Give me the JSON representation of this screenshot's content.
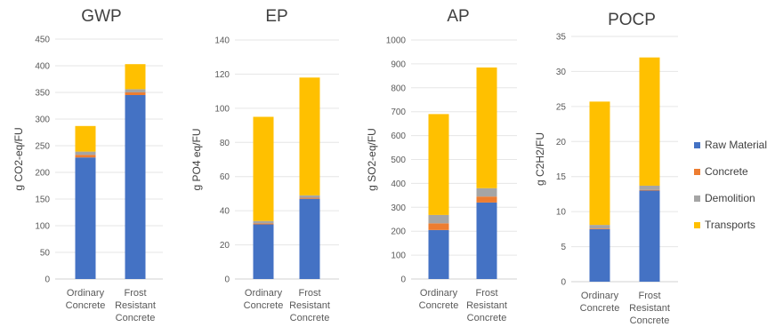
{
  "chart_data": [
    {
      "type": "bar",
      "stacked": true,
      "title": "GWP",
      "ylabel": "g CO2-eq/FU",
      "ylim": [
        0,
        450
      ],
      "yticks": [
        0,
        50,
        100,
        150,
        200,
        250,
        300,
        350,
        400,
        450
      ],
      "categories": [
        [
          "Ordinary",
          "Concrete"
        ],
        [
          "Frost",
          "Resistant",
          "Concrete"
        ]
      ],
      "series": [
        {
          "name": "Raw Material",
          "values": [
            228,
            345
          ]
        },
        {
          "name": "Concrete",
          "values": [
            5,
            5
          ]
        },
        {
          "name": "Demolition",
          "values": [
            6,
            6
          ]
        },
        {
          "name": "Transports",
          "values": [
            48,
            47
          ]
        }
      ],
      "grid": true
    },
    {
      "type": "bar",
      "stacked": true,
      "title": "EP",
      "ylabel": "g PO4 eq/FU",
      "ylim": [
        0,
        140
      ],
      "yticks": [
        0,
        20,
        40,
        60,
        80,
        100,
        120,
        140
      ],
      "categories": [
        [
          "Ordinary",
          "Concrete"
        ],
        [
          "Frost",
          "Resistant",
          "Concrete"
        ]
      ],
      "series": [
        {
          "name": "Raw Material",
          "values": [
            32,
            47
          ]
        },
        {
          "name": "Concrete",
          "values": [
            0.6,
            0.6
          ]
        },
        {
          "name": "Demolition",
          "values": [
            1.4,
            1.4
          ]
        },
        {
          "name": "Transports",
          "values": [
            61,
            69
          ]
        }
      ],
      "grid": true
    },
    {
      "type": "bar",
      "stacked": true,
      "title": "AP",
      "ylabel": "g SO2-eq/FU",
      "ylim": [
        0,
        1000
      ],
      "yticks": [
        0,
        100,
        200,
        300,
        400,
        500,
        600,
        700,
        800,
        900,
        1000
      ],
      "categories": [
        [
          "Ordinary",
          "Concrete"
        ],
        [
          "Frost",
          "Resistant",
          "Concrete"
        ]
      ],
      "series": [
        {
          "name": "Raw Material",
          "values": [
            205,
            320
          ]
        },
        {
          "name": "Concrete",
          "values": [
            28,
            25
          ]
        },
        {
          "name": "Demolition",
          "values": [
            35,
            35
          ]
        },
        {
          "name": "Transports",
          "values": [
            422,
            505
          ]
        }
      ],
      "grid": true
    },
    {
      "type": "bar",
      "stacked": true,
      "title": "POCP",
      "ylabel": "g C2H2/FU",
      "ylim": [
        0,
        35
      ],
      "yticks": [
        0,
        5,
        10,
        15,
        20,
        25,
        30,
        35
      ],
      "categories": [
        [
          "Ordinary",
          "Concrete"
        ],
        [
          "Frost",
          "Resistant",
          "Concrete"
        ]
      ],
      "series": [
        {
          "name": "Raw Material",
          "values": [
            7.5,
            13
          ]
        },
        {
          "name": "Concrete",
          "values": [
            0.1,
            0.1
          ]
        },
        {
          "name": "Demolition",
          "values": [
            0.5,
            0.6
          ]
        },
        {
          "name": "Transports",
          "values": [
            17.6,
            18.3
          ]
        }
      ],
      "grid": true
    }
  ],
  "legend": {
    "placement": "right",
    "items": [
      {
        "label": "Raw Material",
        "color": "#4472c4"
      },
      {
        "label": "Concrete",
        "color": "#ed7d31"
      },
      {
        "label": "Demolition",
        "color": "#a5a5a5"
      },
      {
        "label": "Transports",
        "color": "#ffc000"
      }
    ]
  }
}
